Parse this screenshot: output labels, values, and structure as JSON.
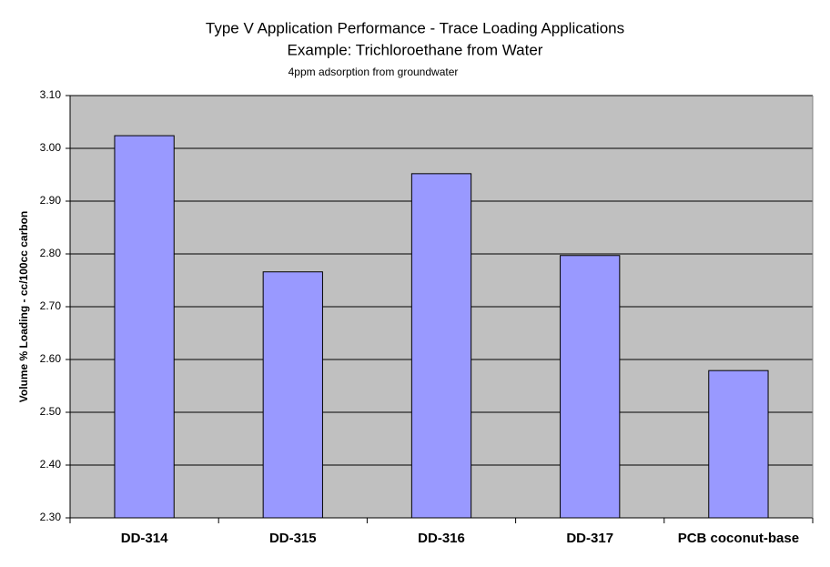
{
  "chart_data": {
    "type": "bar",
    "title": "Type V Application Performance - Trace Loading Applications",
    "subtitle": "Example: Trichloroethane from Water",
    "annotation": "4ppm adsorption from groundwater",
    "y_label": "Volume % Loading - cc/100cc carbon",
    "categories": [
      "DD-314",
      "DD-315",
      "DD-316",
      "DD-317",
      "PCB coconut-base"
    ],
    "values": [
      3.024,
      2.766,
      2.952,
      2.797,
      2.579
    ],
    "color": "#9999ff",
    "ylim": [
      2.3,
      3.1
    ],
    "yticks": [
      {
        "value": 2.3,
        "label": "2.30"
      },
      {
        "value": 2.4,
        "label": "2.40"
      },
      {
        "value": 2.5,
        "label": "2.50"
      },
      {
        "value": 2.6,
        "label": "2.60"
      },
      {
        "value": 2.7,
        "label": "2.70"
      },
      {
        "value": 2.8,
        "label": "2.80"
      },
      {
        "value": 2.9,
        "label": "2.90"
      },
      {
        "value": 3.0,
        "label": "3.00"
      },
      {
        "value": 3.1,
        "label": "3.10"
      }
    ],
    "grid": true
  }
}
